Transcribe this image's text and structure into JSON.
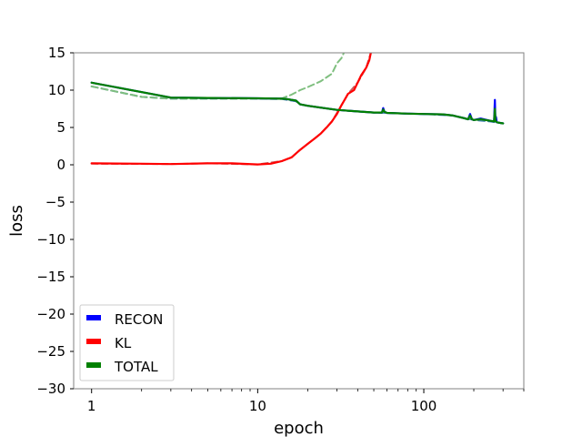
{
  "chart_data": {
    "type": "line",
    "title": "",
    "xlabel": "epoch",
    "ylabel": "loss",
    "xscale": "log",
    "xlim": [
      0.78,
      400
    ],
    "ylim": [
      -30,
      15
    ],
    "xticks": [
      1,
      10,
      100
    ],
    "xtick_labels": [
      "1",
      "10",
      "100"
    ],
    "yticks": [
      15,
      10,
      5,
      0,
      -5,
      -10,
      -15,
      -20,
      -25,
      -30
    ],
    "ytick_labels": [
      "15",
      "10",
      "5",
      "0",
      "−5",
      "−10",
      "−15",
      "−20",
      "−25",
      "−30"
    ],
    "grid": false,
    "legend_position": "lower-left",
    "legend": [
      {
        "label": "RECON",
        "color": "#0000ff"
      },
      {
        "label": "KL",
        "color": "#ff0000"
      },
      {
        "label": "TOTAL",
        "color": "#008000"
      }
    ],
    "series": [
      {
        "name": "RECON",
        "color": "#0000ff",
        "style": "solid",
        "x": [
          1,
          3,
          5,
          10,
          14,
          15,
          17,
          18,
          20,
          25,
          30,
          40,
          50,
          56,
          57,
          58,
          60,
          80,
          100,
          130,
          150,
          170,
          185,
          190,
          195,
          200,
          220,
          250,
          265,
          268,
          270,
          272,
          275,
          290,
          300
        ],
        "y": [
          11.0,
          9.0,
          8.95,
          8.9,
          8.85,
          8.8,
          8.6,
          8.1,
          7.9,
          7.6,
          7.35,
          7.15,
          7.0,
          7.0,
          7.6,
          7.1,
          6.95,
          6.85,
          6.8,
          6.75,
          6.6,
          6.3,
          6.1,
          6.8,
          6.1,
          6.0,
          6.2,
          5.9,
          5.8,
          8.7,
          5.9,
          6.4,
          5.7,
          5.6,
          5.55
        ]
      },
      {
        "name": "KL",
        "color": "#ff0000",
        "style": "solid",
        "x": [
          1,
          2,
          3,
          5,
          7,
          10,
          12,
          14,
          16,
          18,
          20,
          22,
          24,
          26,
          28,
          30,
          32,
          34,
          35,
          38,
          40,
          42,
          45,
          47,
          48
        ],
        "y": [
          0.2,
          0.15,
          0.1,
          0.2,
          0.2,
          0.05,
          0.15,
          0.5,
          1.0,
          2.0,
          2.8,
          3.5,
          4.2,
          5.0,
          5.8,
          6.8,
          8.0,
          9.0,
          9.5,
          10.0,
          11.0,
          12.0,
          13.0,
          14.0,
          15.0
        ]
      },
      {
        "name": "TOTAL",
        "color": "#008000",
        "style": "solid",
        "x": [
          1,
          3,
          5,
          10,
          14,
          15,
          17,
          18,
          20,
          25,
          30,
          40,
          50,
          56,
          57,
          58,
          60,
          80,
          100,
          130,
          150,
          170,
          185,
          190,
          195,
          200,
          220,
          250,
          265,
          268,
          270,
          275,
          290,
          300
        ],
        "y": [
          11.0,
          9.0,
          8.95,
          8.9,
          8.85,
          8.8,
          8.6,
          8.1,
          7.9,
          7.6,
          7.35,
          7.15,
          7.0,
          7.0,
          7.4,
          7.1,
          6.95,
          6.85,
          6.8,
          6.75,
          6.6,
          6.3,
          6.1,
          6.6,
          6.1,
          6.0,
          6.1,
          5.9,
          5.8,
          7.5,
          5.9,
          5.7,
          5.6,
          5.55
        ]
      },
      {
        "name": "",
        "color": "#4682b4",
        "style": "dashed",
        "x": [
          1,
          2,
          3,
          5,
          10,
          14,
          15,
          17,
          18,
          20,
          25,
          30,
          40,
          50,
          60,
          80,
          100,
          150,
          200,
          250,
          300
        ],
        "y": [
          10.5,
          9.1,
          8.85,
          8.85,
          8.85,
          8.8,
          8.7,
          8.5,
          8.1,
          7.9,
          7.6,
          7.35,
          7.15,
          7.0,
          6.95,
          6.85,
          6.8,
          6.6,
          6.0,
          5.8,
          5.55
        ]
      },
      {
        "name": "",
        "color": "#cd5c5c",
        "style": "dashed",
        "x": [
          1,
          3,
          5,
          10,
          14,
          16,
          18,
          20,
          24,
          28,
          32,
          35,
          40,
          45,
          48
        ],
        "y": [
          0.15,
          0.1,
          0.2,
          0.05,
          0.5,
          1.0,
          2.0,
          2.8,
          4.2,
          5.8,
          8.0,
          9.5,
          11.0,
          13.0,
          15.0
        ]
      },
      {
        "name": "",
        "color": "#7fbf7f",
        "style": "dashed",
        "x": [
          1,
          2,
          3,
          5,
          10,
          14,
          16,
          18,
          20,
          24,
          28,
          30,
          32,
          33
        ],
        "y": [
          10.5,
          9.1,
          8.85,
          8.85,
          8.85,
          8.9,
          9.4,
          10.0,
          10.4,
          11.2,
          12.2,
          13.6,
          14.3,
          15.0
        ]
      }
    ]
  }
}
